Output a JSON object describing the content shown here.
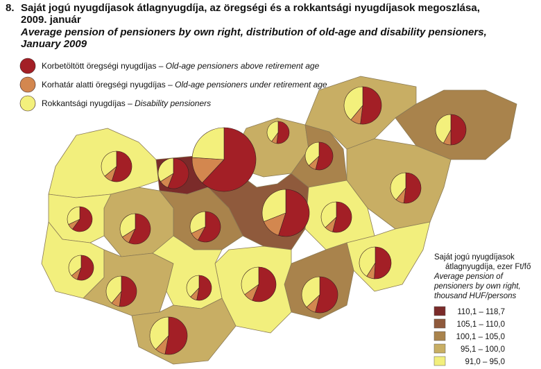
{
  "header": {
    "number": "8.",
    "title_hu": [
      "Saját jogú nyugdíjasok átlagnyugdíja, az öregségi és a rokkantsági nyugdíjasok megoszlása,",
      "2009. január"
    ],
    "title_en": [
      "Average pension of pensioners by own right, distribution of old-age and disability pensioners,",
      "January 2009"
    ]
  },
  "pie_legend": [
    {
      "hu": "Korbetöltött öregségi nyugdíjas – ",
      "en": "Old-age pensioners above retirement age",
      "color": "#a31f26"
    },
    {
      "hu": "Korhatár alatti öregségi nyugdíjas – ",
      "en": "Old-age pensioners under retirement age",
      "color": "#d3874f"
    },
    {
      "hu": "Rokkantsági nyugdíjas – ",
      "en": "Disability pensioners",
      "color": "#f3f07c"
    }
  ],
  "pies": [
    {
      "values": [
        55,
        9,
        36
      ]
    },
    {
      "values": [
        56,
        10,
        34
      ]
    },
    {
      "values": [
        62,
        14,
        24
      ]
    },
    {
      "values": [
        52,
        8,
        40
      ]
    },
    {
      "values": [
        54,
        9,
        37
      ]
    },
    {
      "values": [
        52,
        9,
        39
      ]
    },
    {
      "values": [
        50,
        8,
        42
      ]
    },
    {
      "values": [
        55,
        14,
        31
      ]
    },
    {
      "values": [
        60,
        8,
        32
      ]
    },
    {
      "values": [
        57,
        9,
        34
      ]
    },
    {
      "values": [
        58,
        10,
        32
      ]
    },
    {
      "values": [
        54,
        9,
        37
      ]
    },
    {
      "values": [
        52,
        9,
        39
      ]
    },
    {
      "values": [
        55,
        9,
        36
      ]
    },
    {
      "values": [
        52,
        9,
        39
      ]
    },
    {
      "values": [
        53,
        9,
        38
      ]
    },
    {
      "values": [
        56,
        9,
        35
      ]
    },
    {
      "values": [
        54,
        9,
        37
      ]
    },
    {
      "values": [
        51,
        8,
        41
      ]
    },
    {
      "values": [
        53,
        9,
        38
      ]
    }
  ],
  "class_legend": {
    "title_hu": [
      "Saját jogú nyugdíjasok",
      "átlagnyugdíja, ezer Ft/fő"
    ],
    "title_en": [
      "Average pension of",
      "pensioners by own right,",
      "thousand HUF/persons"
    ],
    "classes": [
      {
        "label": "110,1 – 118,7",
        "color": "#7b2b2a"
      },
      {
        "label": "105,1 – 110,0",
        "color": "#8f5a3c"
      },
      {
        "label": "100,1 – 105,0",
        "color": "#a9834c"
      },
      {
        "label": "95,1 – 100,0",
        "color": "#c8ae64"
      },
      {
        "label": "91,0 – 95,0",
        "color": "#f2ef7d"
      }
    ]
  }
}
